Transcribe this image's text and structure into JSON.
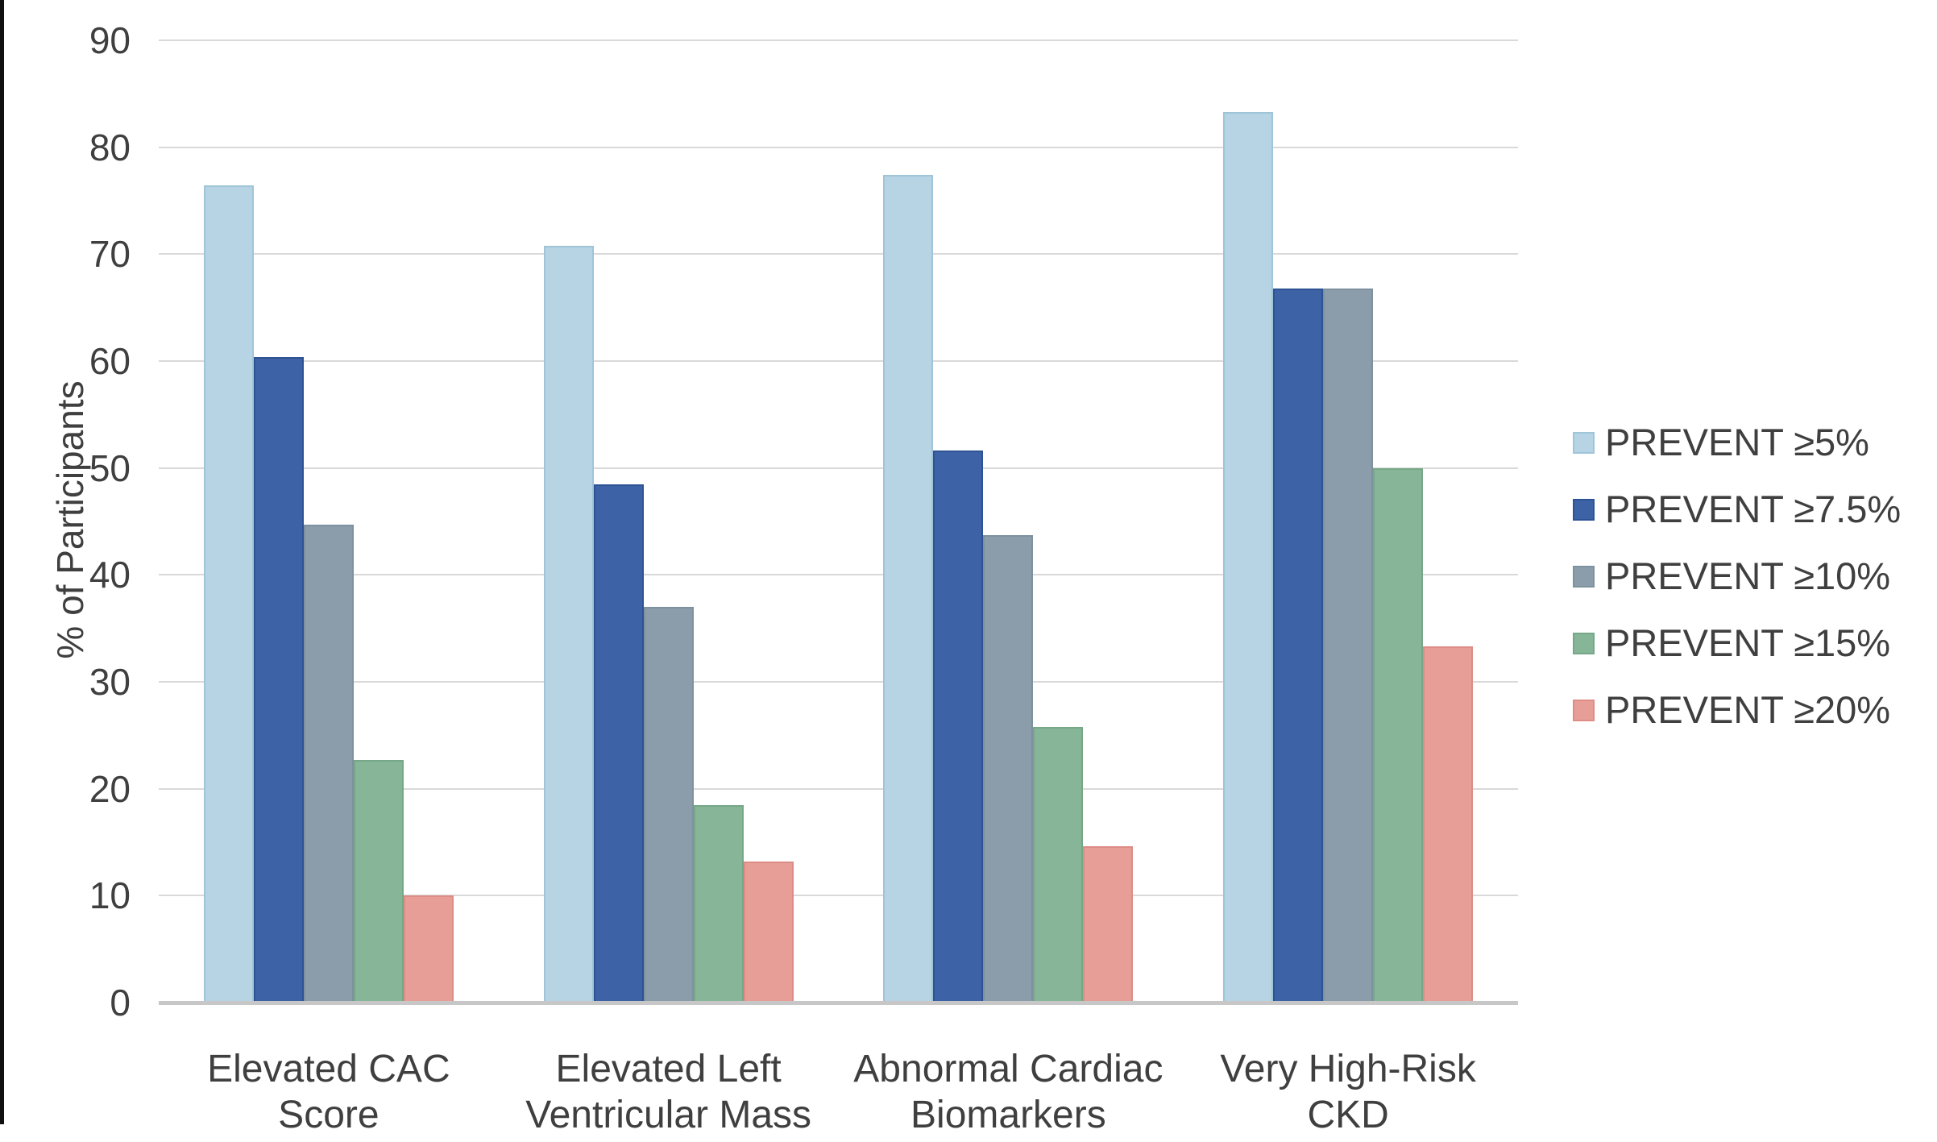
{
  "figure": {
    "background": "#ffffff",
    "text_color": "#3f3f3f",
    "gridline_color": "#d9d9d9",
    "axis_line_color": "#c7c7c7",
    "left_border_color": "#101010"
  },
  "chart_data": {
    "type": "bar",
    "title": "",
    "xlabel": "",
    "ylabel": "% of Participants",
    "ylim": [
      0,
      90
    ],
    "yticks": [
      0,
      10,
      20,
      30,
      40,
      50,
      60,
      70,
      80,
      90
    ],
    "grid": true,
    "legend_position": "right",
    "categories": [
      "Elevated CAC Score",
      "Elevated Left Ventricular Mass",
      "Abnormal Cardiac Biomarkers",
      "Very High-Risk CKD"
    ],
    "category_lines": [
      [
        "Elevated CAC",
        "Score"
      ],
      [
        "Elevated Left",
        "Ventricular Mass"
      ],
      [
        "Abnormal Cardiac",
        "Biomarkers"
      ],
      [
        "Very High-Risk",
        "CKD"
      ]
    ],
    "series": [
      {
        "name": "PREVENT ≥5%",
        "color": "#b6d4e4",
        "border_color": "#a0c4d8",
        "values": [
          76.4,
          70.8,
          77.4,
          83.3
        ]
      },
      {
        "name": "PREVENT ≥7.5%",
        "color": "#3d63a6",
        "border_color": "#2e5394",
        "values": [
          60.4,
          48.5,
          51.6,
          66.8
        ]
      },
      {
        "name": "PREVENT ≥10%",
        "color": "#8b9dab",
        "border_color": "#7d919f",
        "values": [
          44.7,
          37.0,
          43.7,
          66.8
        ]
      },
      {
        "name": "PREVENT ≥15%",
        "color": "#86b597",
        "border_color": "#76a888",
        "values": [
          22.7,
          18.5,
          25.8,
          50.0
        ]
      },
      {
        "name": "PREVENT ≥20%",
        "color": "#e79e97",
        "border_color": "#dd8d86",
        "values": [
          10.0,
          13.2,
          14.6,
          33.3
        ]
      }
    ]
  }
}
